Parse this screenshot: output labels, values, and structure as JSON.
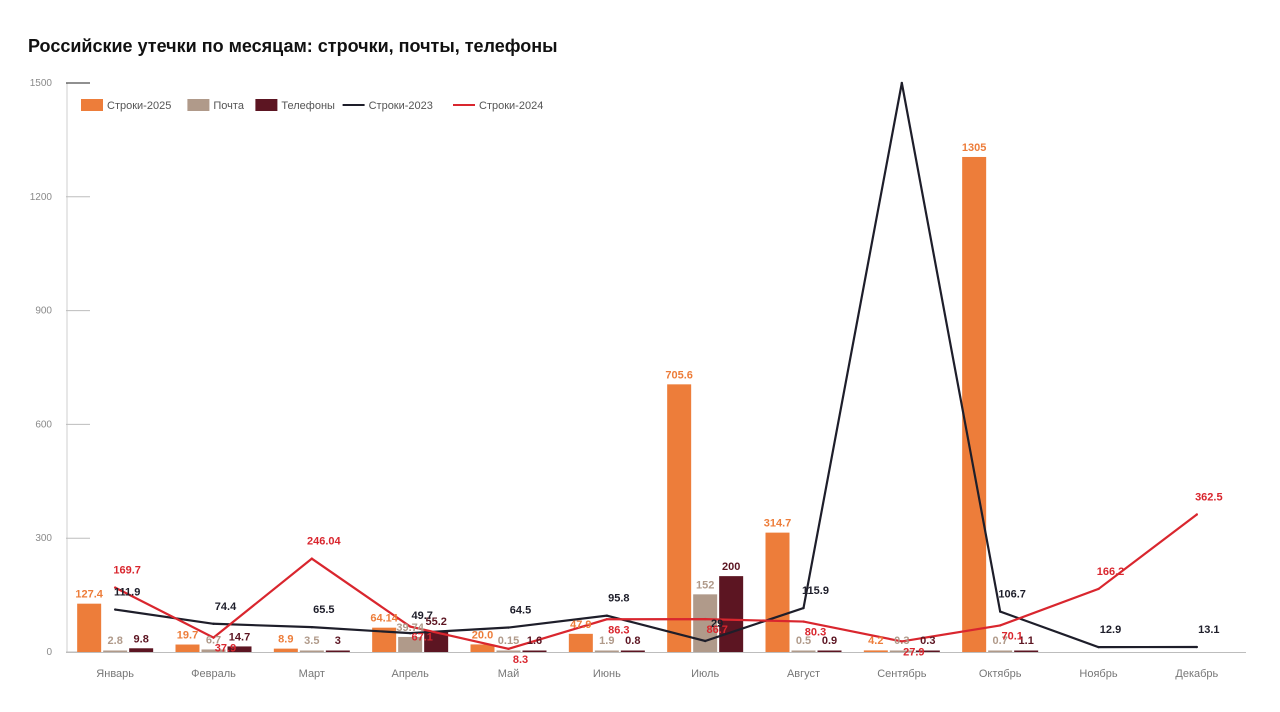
{
  "chart_data": {
    "type": "bar",
    "title": "Российские утечки по месяцам: строчки, почты, телефоны",
    "categories": [
      "Январь",
      "Февраль",
      "Март",
      "Апрель",
      "Май",
      "Июнь",
      "Июль",
      "Август",
      "Сентябрь",
      "Октябрь",
      "Ноябрь",
      "Декабрь"
    ],
    "ylim": [
      0,
      1500
    ],
    "yticks": [
      0,
      300,
      600,
      900,
      1200,
      1500
    ],
    "ytick_labels": [
      "0",
      "300",
      "600",
      "900",
      "1200",
      "1500"
    ],
    "grid": false,
    "legend_position": "top-left",
    "bar_series": [
      {
        "name": "Строки-2025",
        "color": "#ED7D3A",
        "values": [
          127.4,
          19.7,
          8.9,
          64.14,
          20.0,
          47.9,
          705.6,
          314.7,
          4.2,
          1305,
          null,
          null
        ],
        "labels": [
          "127.4",
          "19.7",
          "8.9",
          "64.14",
          "20.0",
          "47.9",
          "705.6",
          "314.7",
          "4.2",
          "1305",
          "",
          ""
        ]
      },
      {
        "name": "Почта",
        "color": "#B09A8A",
        "values": [
          2.8,
          6.7,
          3.5,
          39.7,
          0.15,
          1.9,
          152,
          0.5,
          0.3,
          0.7,
          null,
          null
        ],
        "labels": [
          "2.8",
          "6.7",
          "3.5",
          "39.74",
          "0.15",
          "1.9",
          "152",
          "0.5",
          "0.3",
          "0.7",
          "",
          ""
        ]
      },
      {
        "name": "Телефоны",
        "color": "#5C1522",
        "values": [
          9.8,
          14.7,
          3,
          55.2,
          1.6,
          0.8,
          200,
          0.9,
          0.3,
          1.1,
          null,
          null
        ],
        "labels": [
          "9.8",
          "14.7",
          "3",
          "55.2",
          "1.6",
          "0.8",
          "200",
          "0.9",
          "0.3",
          "1.1",
          "",
          ""
        ]
      }
    ],
    "line_series": [
      {
        "name": "Строки-2023",
        "color": "#1E1E2A",
        "values": [
          111.9,
          74.4,
          65.5,
          49.7,
          64.5,
          95.8,
          29,
          115.9,
          1500,
          106.7,
          12.9,
          13.1
        ],
        "labels": [
          "111.9",
          "74.4",
          "65.5",
          "49.7",
          "64.5",
          "95.8",
          "29",
          "115.9",
          "",
          "106.7",
          "12.9",
          "13.1"
        ]
      },
      {
        "name": "Строки-2024",
        "color": "#D9262E",
        "values": [
          169.7,
          37.9,
          246.04,
          67.1,
          8.3,
          86.3,
          86.7,
          80.3,
          27.9,
          70.1,
          166.2,
          362.5
        ],
        "labels": [
          "169.7",
          "37.9",
          "246.04",
          "67.1",
          "8.3",
          "86.3",
          "86.7",
          "80.3",
          "27.9",
          "70.1",
          "166.2",
          "362.5"
        ]
      }
    ]
  }
}
